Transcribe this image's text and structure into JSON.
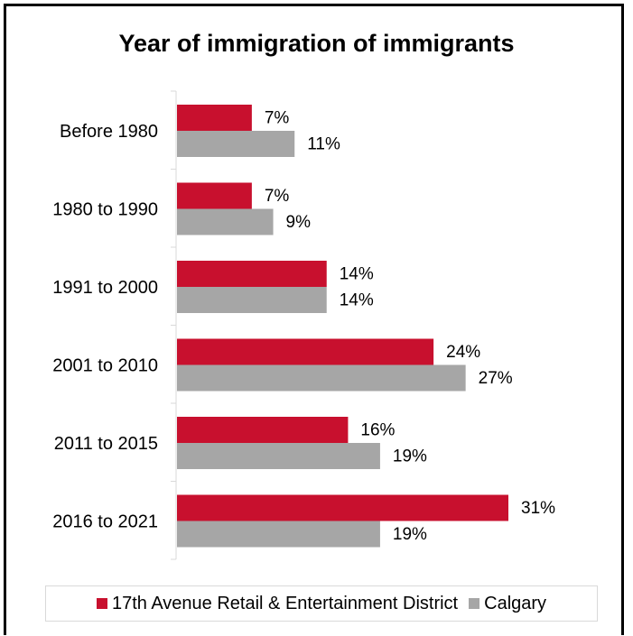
{
  "chart_data": {
    "type": "bar",
    "orientation": "horizontal",
    "title": "Year of immigration of immigrants",
    "categories": [
      "Before 1980",
      "1980 to 1990",
      "1991 to 2000",
      "2001 to 2010",
      "2011 to 2015",
      "2016 to 2021"
    ],
    "series": [
      {
        "name": "17th Avenue Retail & Entertainment District",
        "values": [
          7,
          7,
          14,
          24,
          16,
          31
        ],
        "labels": [
          "7%",
          "7%",
          "14%",
          "24%",
          "16%",
          "31%"
        ],
        "color": "#c8102e"
      },
      {
        "name": "Calgary",
        "values": [
          11,
          9,
          14,
          27,
          19,
          19
        ],
        "labels": [
          "11%",
          "9%",
          "14%",
          "27%",
          "19%",
          "19%"
        ],
        "color": "#a6a6a6"
      }
    ],
    "xlim": [
      0,
      31
    ],
    "grid": false,
    "legend_position": "bottom"
  }
}
